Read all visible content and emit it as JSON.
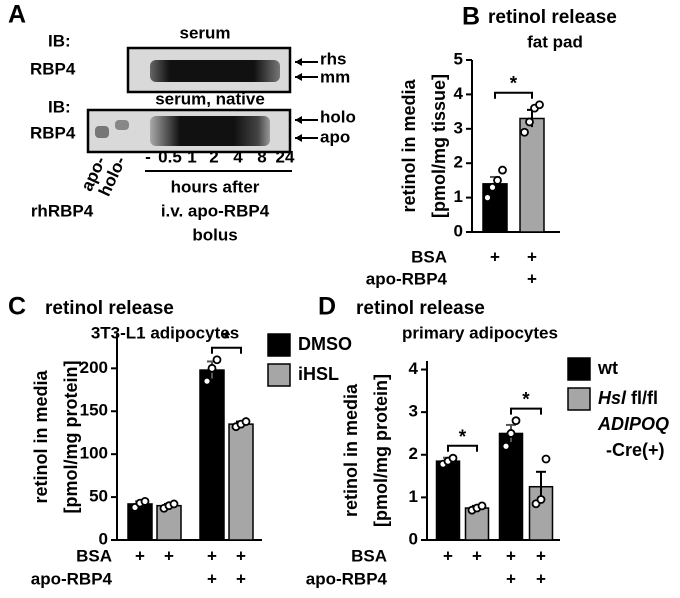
{
  "blot": {
    "panel": "A",
    "top": {
      "ib": "IB:",
      "antibody": "RBP4",
      "sample": "serum",
      "bands": [
        "rhs",
        "mm"
      ]
    },
    "bottom": {
      "ib": "IB:",
      "antibody": "RBP4",
      "sample": "serum, native",
      "bands": [
        "holo",
        "apo"
      ]
    },
    "controls": [
      "apo-",
      "holo-"
    ],
    "control_label": "rhRBP4",
    "lanes": [
      "-",
      "0.5",
      "1",
      "2",
      "4",
      "8",
      "24"
    ],
    "lane_caption": [
      "hours after",
      "i.v. apo-RBP4",
      "bolus"
    ]
  },
  "chart_data": [
    {
      "type": "bar",
      "panel": "B",
      "title": "retinol release",
      "subtitle": "fat pad",
      "ylabel": [
        "retinol in media",
        "[pmol/mg tissue]"
      ],
      "categories": [
        null,
        null
      ],
      "values": [
        1.4,
        3.3
      ],
      "errors": [
        0.2,
        0.25
      ],
      "colors": [
        "#000000",
        "#a6a6a6"
      ],
      "points": [
        [
          1.0,
          1.3,
          1.5,
          1.8
        ],
        [
          2.9,
          3.2,
          3.6,
          3.7
        ]
      ],
      "ylim": [
        0,
        5
      ],
      "yticks": [
        0,
        1,
        2,
        3,
        4,
        5
      ],
      "conditions": [
        {
          "label": "BSA",
          "marks": [
            "+",
            "+"
          ]
        },
        {
          "label": "apo-RBP4",
          "marks": [
            null,
            "+"
          ]
        }
      ],
      "significance": [
        "*"
      ]
    },
    {
      "type": "grouped_bar",
      "panel": "C",
      "title": "retinol release",
      "subtitle": "3T3-L1 adipocytes",
      "ylabel": [
        "retinol in media",
        "[pmol/mg protein]"
      ],
      "series": [
        {
          "name": "DMSO",
          "color": "#000000",
          "values": [
            42,
            198
          ],
          "errors": [
            3,
            10
          ],
          "points": [
            [
              38,
              43,
              45
            ],
            [
              185,
              200,
              210
            ]
          ]
        },
        {
          "name": "iHSL",
          "color": "#a6a6a6",
          "values": [
            40,
            135
          ],
          "errors": [
            2,
            3
          ],
          "points": [
            [
              37,
              40,
              42
            ],
            [
              132,
              135,
              138
            ]
          ]
        }
      ],
      "ylim": [
        0,
        240
      ],
      "yticks": [
        0,
        50,
        100,
        150,
        200
      ],
      "conditions": [
        {
          "label": "BSA",
          "marks": [
            "+",
            "+",
            "+",
            "+"
          ]
        },
        {
          "label": "apo-RBP4",
          "marks": [
            null,
            null,
            "+",
            "+"
          ]
        }
      ],
      "significance": [
        "*"
      ]
    },
    {
      "type": "grouped_bar",
      "panel": "D",
      "title": "retinol release",
      "subtitle": "primary adipocytes",
      "ylabel": [
        "retinol in media",
        "[pmol/mg protein]"
      ],
      "series": [
        {
          "name": "wt",
          "color": "#000000",
          "values": [
            1.85,
            2.5
          ],
          "errors": [
            0.08,
            0.2
          ],
          "points": [
            [
              1.78,
              1.85,
              1.92
            ],
            [
              2.2,
              2.5,
              2.8
            ]
          ]
        },
        {
          "name": "Hsl fl/fl ADIPOQ -Cre(+)",
          "color": "#a6a6a6",
          "values": [
            0.75,
            1.25
          ],
          "errors": [
            0.05,
            0.35
          ],
          "points": [
            [
              0.7,
              0.75,
              0.8
            ],
            [
              0.85,
              0.95,
              1.9
            ]
          ]
        }
      ],
      "ylim": [
        0,
        4.2
      ],
      "yticks": [
        0,
        1,
        2,
        3,
        4
      ],
      "conditions": [
        {
          "label": "BSA",
          "marks": [
            "+",
            "+",
            "+",
            "+"
          ]
        },
        {
          "label": "apo-RBP4",
          "marks": [
            null,
            null,
            "+",
            "+"
          ]
        }
      ],
      "significance": [
        "*",
        "*"
      ]
    }
  ]
}
